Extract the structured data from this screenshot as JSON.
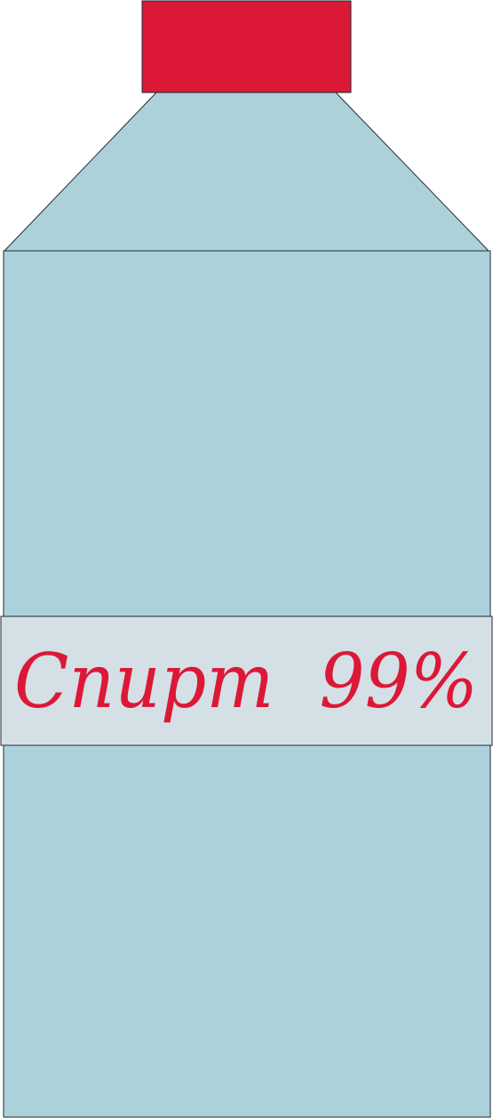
{
  "bottle": {
    "label": {
      "text": "Спирт  99%"
    }
  },
  "colors": {
    "cap": "#DC1837",
    "body": "#ACD1DB",
    "label_background": "#D5E0E6",
    "label_text": "#DC1837",
    "outline": "#1E2A33"
  }
}
